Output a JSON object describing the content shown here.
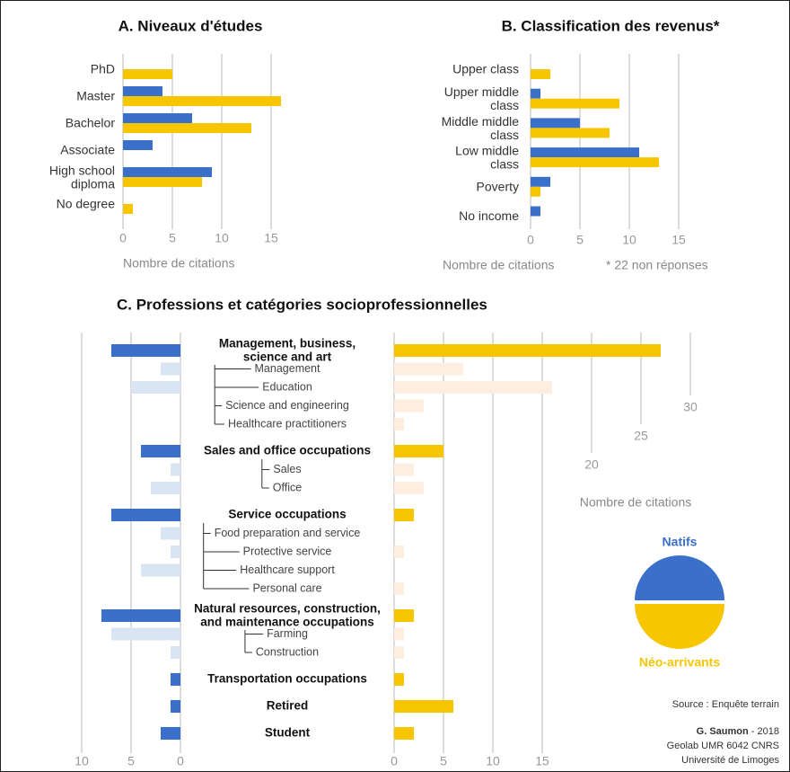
{
  "chart_data": [
    {
      "type": "bar",
      "orientation": "horizontal",
      "title": "A. Niveaux d'études",
      "xlabel": "Nombre de citations",
      "categories": [
        "PhD",
        "Master",
        "Bachelor",
        "Associate",
        "High school\ndiploma",
        "No degree"
      ],
      "series": [
        {
          "name": "Natifs",
          "color": "#3a70c9",
          "values": [
            0,
            4,
            7,
            3,
            9,
            0
          ]
        },
        {
          "name": "Néo-arrivants",
          "color": "#f7c600",
          "values": [
            5,
            16,
            13,
            0,
            8,
            1
          ]
        }
      ],
      "xlim": [
        0,
        16
      ],
      "xticks": [
        0,
        5,
        10,
        15
      ],
      "grid": true
    },
    {
      "type": "bar",
      "orientation": "horizontal",
      "title": "B. Classification des revenus*",
      "xlabel": "Nombre de citations",
      "note": "* 22 non réponses",
      "categories": [
        "Upper class",
        "Upper middle\nclass",
        "Middle middle\nclass",
        "Low middle\nclass",
        "Poverty",
        "No income"
      ],
      "series": [
        {
          "name": "Natifs",
          "color": "#3a70c9",
          "values": [
            0,
            1,
            5,
            11,
            2,
            1
          ]
        },
        {
          "name": "Néo-arrivants",
          "color": "#f7c600",
          "values": [
            2,
            9,
            8,
            13,
            1,
            0
          ]
        }
      ],
      "xlim": [
        0,
        16
      ],
      "xticks": [
        0,
        5,
        10,
        15
      ],
      "grid": true
    },
    {
      "type": "butterfly",
      "title": "C. Professions et catégories socioprofessionnelles",
      "xlabel": "Nombre de citations",
      "series": [
        {
          "name": "Natifs",
          "color": "#3a70c9",
          "light_color": "#dae5f3",
          "xlim": [
            0,
            10
          ],
          "xticks": [
            0,
            5,
            10
          ]
        },
        {
          "name": "Néo-arrivants",
          "color": "#f7c600",
          "light_color": "#fdeedf",
          "xlim": [
            0,
            30
          ],
          "xticks": [
            0,
            5,
            10,
            15,
            20,
            25,
            30
          ]
        }
      ],
      "groups": [
        {
          "name": "Management, business,\nscience and art",
          "values": [
            7,
            27
          ],
          "subcategories": [
            {
              "name": "Management",
              "values": [
                2,
                7
              ]
            },
            {
              "name": "Education",
              "values": [
                5,
                16
              ]
            },
            {
              "name": "Science and engineering",
              "values": [
                0,
                3
              ]
            },
            {
              "name": "Healthcare practitioners",
              "values": [
                0,
                1
              ]
            }
          ]
        },
        {
          "name": "Sales and office occupations",
          "values": [
            4,
            5
          ],
          "subcategories": [
            {
              "name": "Sales",
              "values": [
                1,
                2
              ]
            },
            {
              "name": "Office",
              "values": [
                3,
                3
              ]
            }
          ]
        },
        {
          "name": "Service occupations",
          "values": [
            7,
            2
          ],
          "subcategories": [
            {
              "name": "Food preparation and service",
              "values": [
                2,
                0
              ]
            },
            {
              "name": "Protective service",
              "values": [
                1,
                1
              ]
            },
            {
              "name": "Healthcare support",
              "values": [
                4,
                0
              ]
            },
            {
              "name": "Personal care",
              "values": [
                0,
                1
              ]
            }
          ]
        },
        {
          "name": "Natural resources, construction,\nand maintenance occupations",
          "values": [
            8,
            2
          ],
          "subcategories": [
            {
              "name": "Farming",
              "values": [
                7,
                1
              ]
            },
            {
              "name": "Construction",
              "values": [
                1,
                1
              ]
            }
          ]
        },
        {
          "name": "Transportation occupations",
          "values": [
            1,
            1
          ],
          "subcategories": []
        },
        {
          "name": "Retired",
          "values": [
            1,
            6
          ],
          "subcategories": []
        },
        {
          "name": "Student",
          "values": [
            2,
            2
          ],
          "subcategories": []
        }
      ],
      "grid": true
    }
  ],
  "credits": {
    "source": "Source : Enquête terrain",
    "author": "G. Saumon",
    "date": "- 2018",
    "lab": "Geolab UMR 6042 CNRS",
    "university": "Université de Limoges"
  }
}
